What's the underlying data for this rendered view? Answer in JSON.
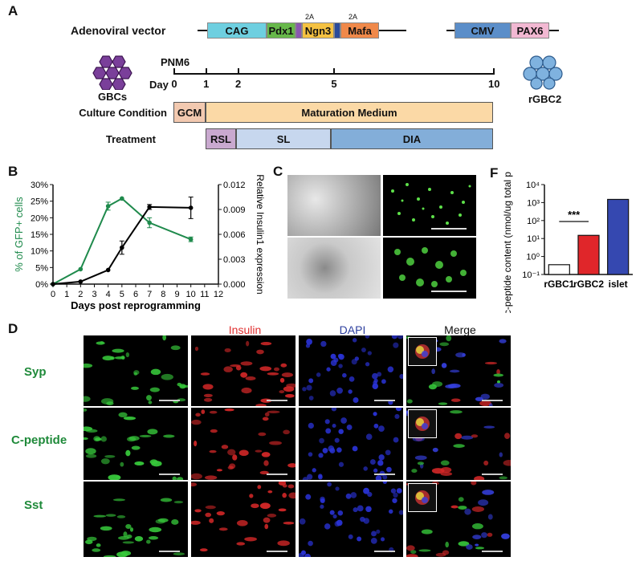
{
  "panel_letters": {
    "a": "A",
    "b": "B",
    "c": "C",
    "d": "D",
    "f": "F"
  },
  "panelA": {
    "vector_label": "Adenoviral vector",
    "segments": [
      {
        "label": "CAG",
        "color": "#6ecfe0"
      },
      {
        "label": "Pdx1",
        "color": "#67b84a"
      },
      {
        "label": "",
        "color": "#8a57b0"
      },
      {
        "label": "Ngn3",
        "color": "#f5c242"
      },
      {
        "label": "",
        "color": "#2a4b9b"
      },
      {
        "label": "Mafa",
        "color": "#f0894a"
      }
    ],
    "tag_2a_1": "2A",
    "tag_2a_2": "2A",
    "segments2": [
      {
        "label": "CMV",
        "color": "#5b8ec9"
      },
      {
        "label": "PAX6",
        "color": "#f2b8d2"
      }
    ],
    "gbcs_label": "GBCs",
    "rgbc2_label": "rGBC2",
    "pnm6": "PNM6",
    "day_label": "Day",
    "days": [
      "0",
      "1",
      "2",
      "5",
      "10"
    ],
    "culture_label": "Culture Condition",
    "treatment_label": "Treatment",
    "gcm": "GCM",
    "maturation": "Maturation Medium",
    "rsl": "RSL",
    "sl": "SL",
    "dia": "DIA"
  },
  "chart_data": [
    {
      "type": "line",
      "xlabel": "Days post reprogramming",
      "ylabel": "% of GFP+ cells",
      "y2label": "Relative Insulin1 expression",
      "xlim": [
        0,
        12
      ],
      "ylim": [
        0,
        30
      ],
      "y2lim": [
        0,
        0.012
      ],
      "x_ticks": [
        "0",
        "1",
        "2",
        "3",
        "4",
        "5",
        "6",
        "7",
        "8",
        "9",
        "10",
        "11",
        "12"
      ],
      "y_ticks": [
        "0%",
        "5%",
        "10%",
        "15%",
        "20%",
        "25%",
        "30%"
      ],
      "y2_ticks": [
        "0.000",
        "0.003",
        "0.006",
        "0.009",
        "0.012"
      ],
      "series": [
        {
          "color": "#1f8a4c",
          "axis": "left",
          "x": [
            0,
            2,
            4,
            5,
            7,
            10
          ],
          "y": [
            0,
            4.5,
            23.5,
            25.8,
            18.5,
            13.5
          ]
        },
        {
          "color": "#000000",
          "axis": "right",
          "x": [
            0,
            2,
            4,
            5,
            7,
            10
          ],
          "y": [
            0,
            0.0003,
            0.0017,
            0.0044,
            0.0093,
            0.0092
          ]
        }
      ]
    },
    {
      "type": "bar",
      "ylabel": "c-peptide content (nmol/ug total protein)",
      "categories": [
        "rGBC1",
        "rGBC2",
        "islet"
      ],
      "values": [
        0.35,
        15,
        1500
      ],
      "colors": [
        "#ffffff",
        "#e0262a",
        "#3548b0"
      ],
      "log_scale": true,
      "ylim": [
        0.1,
        10000
      ],
      "y_ticks": [
        "10⁻¹",
        "10⁰",
        "10¹",
        "10²",
        "10³",
        "10⁴"
      ],
      "annotation": "***"
    }
  ],
  "panelD": {
    "col_headers": [
      {
        "label": "Insulin",
        "color": "#e03030"
      },
      {
        "label": "DAPI",
        "color": "#2c3e9e"
      },
      {
        "label": "Merge",
        "color": "#111111"
      }
    ],
    "row_labels": [
      "Syp",
      "C-peptide",
      "Sst"
    ]
  }
}
